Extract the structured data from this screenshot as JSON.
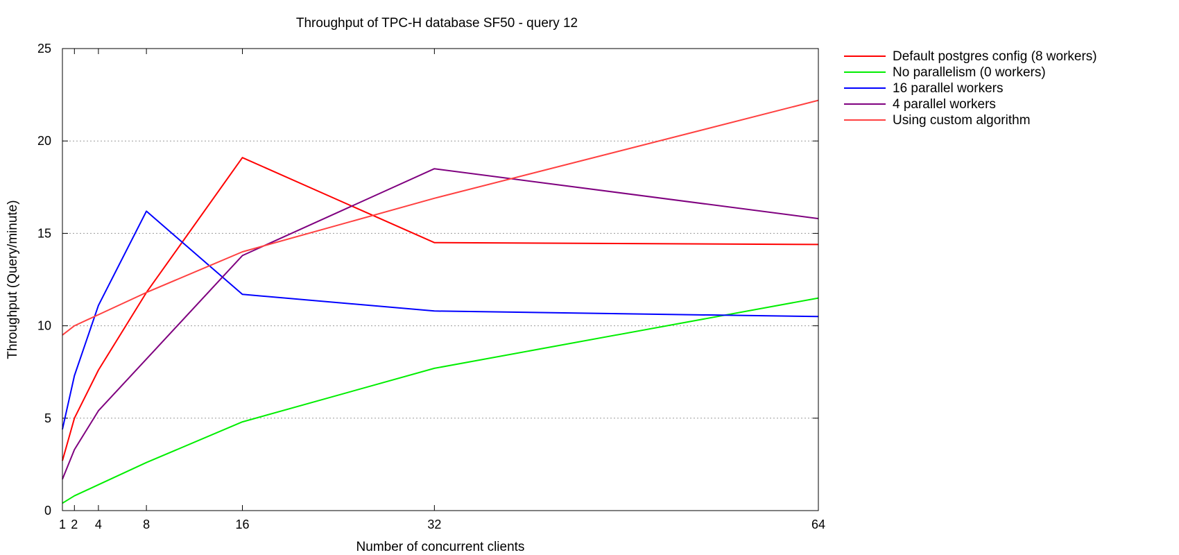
{
  "chart_data": {
    "type": "line",
    "title": "Throughput of TPC-H database SF50 - query 12",
    "xlabel": "Number of concurrent clients",
    "ylabel": "Throughput (Query/minute)",
    "x": [
      1,
      2,
      4,
      8,
      16,
      32,
      64
    ],
    "xticks": [
      "1",
      "2",
      "4",
      "8",
      "16",
      "32",
      "64"
    ],
    "yticks": [
      "0",
      "5",
      "10",
      "15",
      "20",
      "25"
    ],
    "xlim": [
      1,
      64
    ],
    "ylim": [
      0,
      25
    ],
    "grid": "horizontal dotted",
    "legend_position": "outside-right",
    "series": [
      {
        "name": "Default postgres config (8 workers)",
        "color": "#ff0000",
        "values": [
          2.7,
          5.0,
          7.6,
          11.8,
          19.1,
          14.5,
          14.4
        ]
      },
      {
        "name": "No parallelism (0 workers)",
        "color": "#00ee00",
        "values": [
          0.4,
          0.8,
          1.4,
          2.6,
          4.8,
          7.7,
          11.5
        ]
      },
      {
        "name": "16 parallel workers",
        "color": "#0000ff",
        "values": [
          4.4,
          7.3,
          11.1,
          16.2,
          11.7,
          10.8,
          10.5
        ]
      },
      {
        "name": "4 parallel workers",
        "color": "#7f007f",
        "values": [
          1.7,
          3.3,
          5.4,
          8.2,
          13.8,
          18.5,
          15.8
        ]
      },
      {
        "name": "Using custom algorithm",
        "color": "#ff4040",
        "values": [
          9.5,
          10.0,
          10.6,
          11.8,
          14.0,
          16.9,
          22.2
        ]
      }
    ]
  }
}
